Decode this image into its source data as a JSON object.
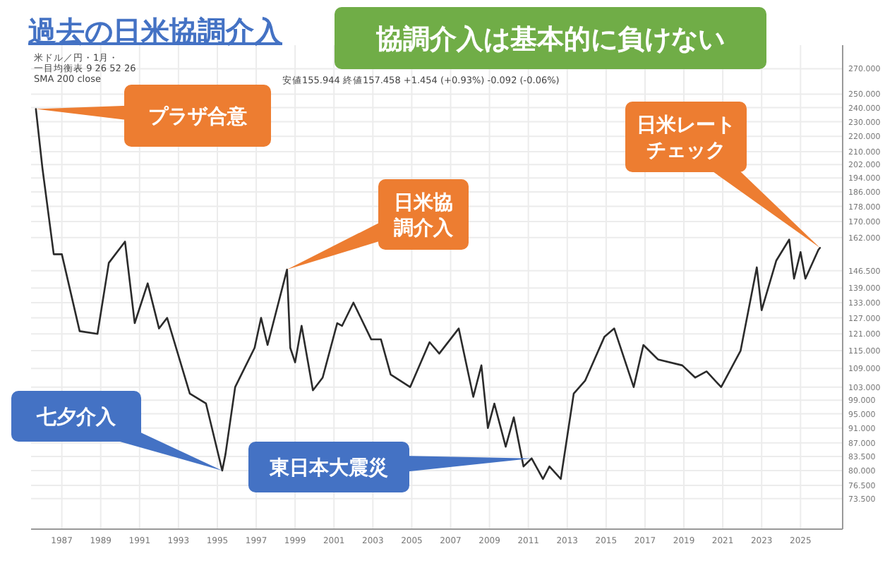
{
  "chart_data": {
    "type": "line",
    "title": "過去の日米協調介入",
    "subtitle": "協調介入は基本的に負けない",
    "x": [
      "1985-09",
      "1986-01",
      "1986-08",
      "1987-01",
      "1987-12",
      "1988-11",
      "1989-06",
      "1990-04",
      "1990-10",
      "1991-06",
      "1992-01",
      "1992-06",
      "1993-08",
      "1994-06",
      "1995-04",
      "1995-06",
      "1995-12",
      "1996-12",
      "1997-04",
      "1997-08",
      "1998-08",
      "1998-10",
      "1999-01",
      "1999-05",
      "1999-12",
      "2000-06",
      "2001-03",
      "2001-06",
      "2002-01",
      "2002-12",
      "2003-06",
      "2003-12",
      "2004-12",
      "2005-12",
      "2006-06",
      "2007-06",
      "2008-03",
      "2008-08",
      "2008-12",
      "2009-04",
      "2009-11",
      "2010-04",
      "2010-10",
      "2011-03",
      "2011-10",
      "2012-02",
      "2012-09",
      "2013-05",
      "2013-12",
      "2014-12",
      "2015-06",
      "2016-06",
      "2016-12",
      "2017-09",
      "2018-12",
      "2019-08",
      "2020-03",
      "2020-12",
      "2021-12",
      "2022-10",
      "2023-01",
      "2023-10",
      "2024-06",
      "2024-09",
      "2025-01",
      "2025-04",
      "2025-12",
      "2026-01"
    ],
    "series": [
      {
        "color": "#2b2b2b",
        "values": [
          239,
          200,
          154,
          154,
          122,
          121,
          150,
          160,
          125,
          141,
          123,
          127,
          101,
          98,
          80,
          84,
          103,
          116,
          127,
          117,
          147,
          116,
          111,
          124,
          102,
          106,
          125,
          124,
          133,
          119,
          119,
          107,
          103,
          118,
          114,
          123,
          100,
          110,
          91,
          98,
          86,
          94,
          81,
          83,
          78,
          81,
          78,
          101,
          105,
          120,
          123,
          103,
          117,
          112,
          110,
          106,
          108,
          103,
          115,
          148,
          130,
          151,
          161,
          143,
          155,
          143,
          156,
          157
        ]
      }
    ],
    "log": "y",
    "grid": true,
    "xlim": [
      "1985-06",
      "2027-03"
    ],
    "xticks": [
      "1987",
      "1989",
      "1991",
      "1993",
      "1995",
      "1997",
      "1999",
      "2001",
      "2003",
      "2005",
      "2007",
      "2009",
      "2011",
      "2013",
      "2015",
      "2017",
      "2019",
      "2021",
      "2023",
      "2025"
    ],
    "ylim": [
      67,
      290
    ],
    "yticks": [
      {
        "value": 270,
        "label": "270.000"
      },
      {
        "value": 250,
        "label": "250.000"
      },
      {
        "value": 240,
        "label": "240.000"
      },
      {
        "value": 230,
        "label": "230.000"
      },
      {
        "value": 220,
        "label": "220.000"
      },
      {
        "value": 210,
        "label": "210.000"
      },
      {
        "value": 202,
        "label": "202.000"
      },
      {
        "value": 194,
        "label": "194.000"
      },
      {
        "value": 186,
        "label": "186.000"
      },
      {
        "value": 178,
        "label": "178.000"
      },
      {
        "value": 170,
        "label": "170.000"
      },
      {
        "value": 162,
        "label": "162.000"
      },
      {
        "value": 146.5,
        "label": "146.500"
      },
      {
        "value": 139,
        "label": "139.000"
      },
      {
        "value": 133,
        "label": "133.000"
      },
      {
        "value": 127,
        "label": "127.000"
      },
      {
        "value": 121,
        "label": "121.000"
      },
      {
        "value": 115,
        "label": "115.000"
      },
      {
        "value": 109,
        "label": "109.000"
      },
      {
        "value": 103,
        "label": "103.000"
      },
      {
        "value": 99,
        "label": "99.000"
      },
      {
        "value": 95,
        "label": "95.000"
      },
      {
        "value": 91,
        "label": "91.000"
      },
      {
        "value": 87,
        "label": "87.000"
      },
      {
        "value": 83.5,
        "label": "83.500"
      },
      {
        "value": 80,
        "label": "80.000"
      },
      {
        "value": 76.5,
        "label": "76.500"
      },
      {
        "value": 73.5,
        "label": "73.500"
      }
    ],
    "annotations": [
      {
        "text": "プラザ合意",
        "x": "1985-09",
        "y": 239
      },
      {
        "text": "日米協調介入",
        "x": "1998-08",
        "y": 147
      },
      "日米レートチェック",
      {
        "text": "七夕介入",
        "x": "1995-04",
        "y": 80
      },
      {
        "text": "東日本大震災",
        "x": "2011-03",
        "y": 83
      },
      "米ドル／円・1月・",
      "一目均衡表 9 26 52 26",
      "SMA 200 close",
      "安値155.944 終値157.458 +1.454 (+0.93%) -0.092 (-0.06%)"
    ]
  }
}
